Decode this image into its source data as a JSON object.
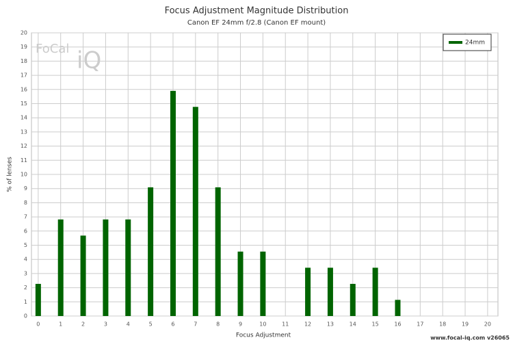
{
  "chart_data": {
    "type": "bar",
    "title": "Focus Adjustment Magnitude Distribution",
    "subtitle": "Canon EF 24mm f/2.8 (Canon EF mount)",
    "x_label": "Focus Adjustment",
    "y_label": "% of lenses",
    "x": [
      0,
      1,
      2,
      3,
      4,
      5,
      6,
      7,
      8,
      9,
      10,
      11,
      12,
      13,
      14,
      15,
      16
    ],
    "series": [
      {
        "name": "24mm",
        "color": "#006400",
        "values": [
          2.27,
          6.82,
          5.68,
          6.82,
          6.82,
          9.09,
          15.9,
          14.77,
          9.09,
          4.55,
          4.55,
          0,
          3.41,
          3.41,
          2.27,
          3.41,
          1.14
        ]
      }
    ],
    "xlim": [
      -0.3,
      20.46
    ],
    "ylim": [
      0,
      20
    ],
    "xticks": [
      0,
      1,
      2,
      3,
      4,
      5,
      6,
      7,
      8,
      9,
      10,
      11,
      12,
      13,
      14,
      15,
      16,
      17,
      18,
      19,
      20
    ],
    "yticks": [
      0,
      1,
      2,
      3,
      4,
      5,
      6,
      7,
      8,
      9,
      10,
      11,
      12,
      13,
      14,
      15,
      16,
      17,
      18,
      19,
      20
    ],
    "grid": true,
    "legend": "top-right",
    "watermark": [
      "FoCal",
      "iQ"
    ],
    "footer": "www.focal-iq.com  v26065"
  }
}
